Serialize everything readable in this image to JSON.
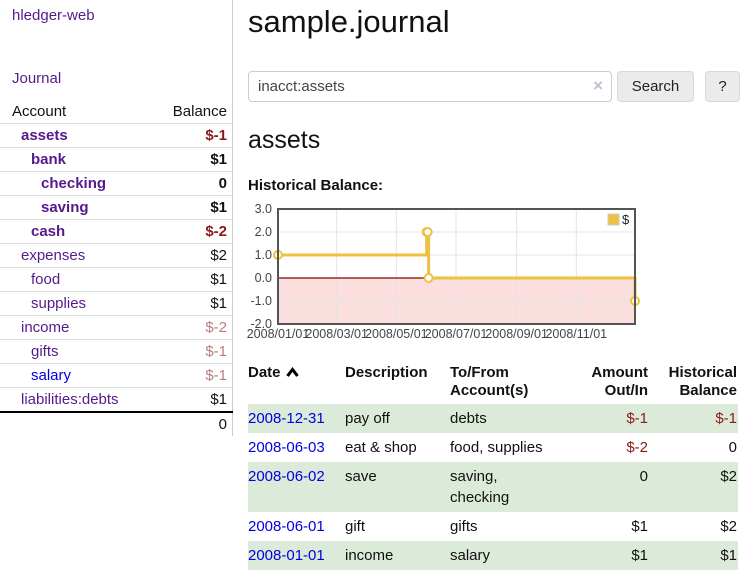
{
  "colors": {
    "link_purple": "#551a8b",
    "link_blue": "#0000e0",
    "negative_strong": "#8b1a1a",
    "negative_soft": "#b97f7f",
    "row_stripe_green": "#dcead9",
    "series_gold": "#edc240"
  },
  "sidebar": {
    "brand": "hledger-web",
    "journal_label": "Journal",
    "table": {
      "account_header": "Account",
      "balance_header": "Balance",
      "accounts": [
        {
          "name": "assets",
          "depth": 1,
          "bold": true,
          "balance": "$-1",
          "neg": "strong"
        },
        {
          "name": "bank",
          "depth": 2,
          "bold": true,
          "balance": "$1"
        },
        {
          "name": "checking",
          "depth": 3,
          "bold": true,
          "balance": "0"
        },
        {
          "name": "saving",
          "depth": 3,
          "bold": true,
          "balance": "$1"
        },
        {
          "name": "cash",
          "depth": 2,
          "bold": true,
          "balance": "$-2",
          "neg": "strong"
        },
        {
          "name": "expenses",
          "depth": 1,
          "bold": false,
          "balance": "$2"
        },
        {
          "name": "food",
          "depth": 2,
          "bold": false,
          "balance": "$1"
        },
        {
          "name": "supplies",
          "depth": 2,
          "bold": false,
          "balance": "$1"
        },
        {
          "name": "income",
          "depth": 1,
          "bold": false,
          "balance": "$-2",
          "neg": "soft"
        },
        {
          "name": "gifts",
          "depth": 2,
          "bold": false,
          "balance": "$-1",
          "neg": "soft"
        },
        {
          "name": "salary",
          "depth": 2,
          "bold": false,
          "balance": "$-1",
          "neg": "soft",
          "link": "blue"
        },
        {
          "name": "liabilities:debts",
          "depth": 1,
          "bold": false,
          "balance": "$1"
        }
      ],
      "total": "0"
    }
  },
  "main": {
    "title": "sample.journal",
    "search": {
      "query": "inacct:assets",
      "clear_icon": "×",
      "button_label": "Search",
      "help_label": "?"
    },
    "account_heading": "assets",
    "chart_title": "Historical Balance:",
    "table": {
      "headers": [
        "Date",
        "Description",
        "To/From Account(s)",
        "Amount Out/In",
        "Historical Balance"
      ],
      "rows": [
        {
          "date": "2008-12-31",
          "description": "pay off",
          "accounts": "debts",
          "amount": "$-1",
          "amount_neg": true,
          "balance": "$-1",
          "balance_neg": true
        },
        {
          "date": "2008-06-03",
          "description": "eat & shop",
          "accounts": "food, supplies",
          "amount": "$-2",
          "amount_neg": true,
          "balance": "0",
          "balance_neg": false
        },
        {
          "date": "2008-06-02",
          "description": "save",
          "accounts": "saving, checking",
          "amount": "0",
          "amount_neg": false,
          "balance": "$2",
          "balance_neg": false
        },
        {
          "date": "2008-06-01",
          "description": "gift",
          "accounts": "gifts",
          "amount": "$1",
          "amount_neg": false,
          "balance": "$2",
          "balance_neg": false
        },
        {
          "date": "2008-01-01",
          "description": "income",
          "accounts": "salary",
          "amount": "$1",
          "amount_neg": false,
          "balance": "$1",
          "balance_neg": false
        }
      ]
    }
  },
  "chart_data": {
    "type": "line",
    "step": true,
    "title": "Historical Balance:",
    "legend": {
      "position": "top-right",
      "entries": [
        "$"
      ]
    },
    "series": [
      {
        "name": "$",
        "color": "#edc240",
        "points": [
          {
            "date": "2008-01-01",
            "value": 1
          },
          {
            "date": "2008-06-01",
            "value": 2
          },
          {
            "date": "2008-06-02",
            "value": 2
          },
          {
            "date": "2008-06-03",
            "value": 0
          },
          {
            "date": "2008-12-31",
            "value": -1
          }
        ]
      }
    ],
    "xlim": [
      "2008-01-01",
      "2008-12-31"
    ],
    "ylim": [
      -2,
      3
    ],
    "x_ticks": [
      "2008/01/01",
      "2008/03/01",
      "2008/05/01",
      "2008/07/01",
      "2008/09/01",
      "2008/11/01"
    ],
    "y_ticks": [
      3.0,
      2.0,
      1.0,
      0.0,
      -1.0,
      -2.0
    ],
    "grid": true,
    "zero_line_color": "#8b0000",
    "negative_region_fill": "#fbdede",
    "border_color": "#545454"
  }
}
